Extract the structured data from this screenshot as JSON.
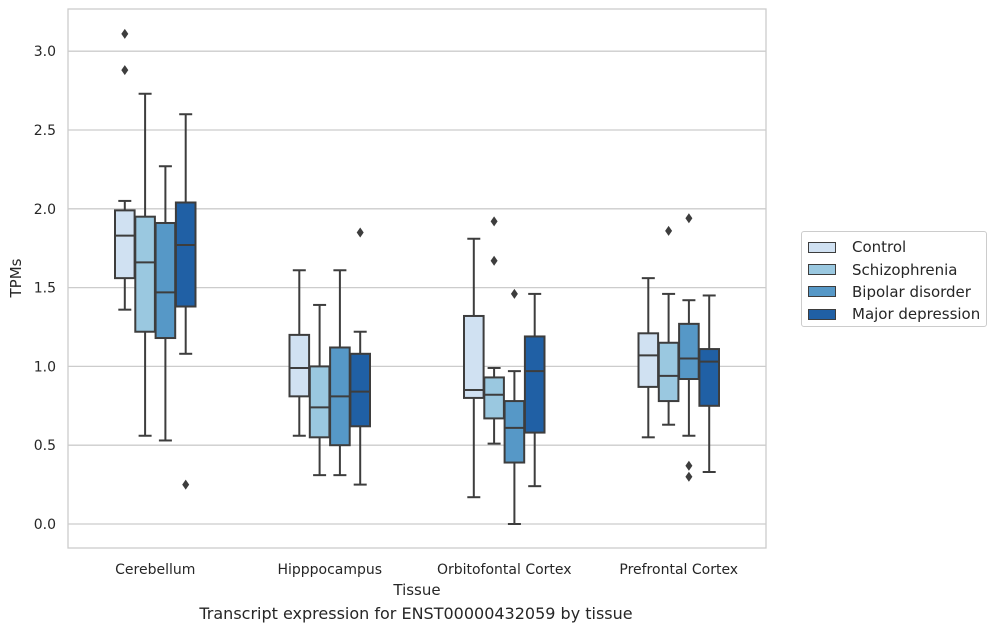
{
  "chart_data": {
    "type": "box",
    "title": "Transcript expression for ENST00000432059 by tissue",
    "xlabel": "Tissue",
    "ylabel": "TPMs",
    "categories": [
      "Cerebellum",
      "Hipppocampus",
      "Orbitofontal Cortex",
      "Prefrontal Cortex"
    ],
    "yticks": [
      "0.0",
      "0.5",
      "1.0",
      "1.5",
      "2.0",
      "2.5",
      "3.0"
    ],
    "ylim": [
      -0.15,
      3.27
    ],
    "grid": "horizontal",
    "legend_position": "right",
    "series": [
      {
        "name": "Control",
        "color": "#d0e1f2",
        "boxes": [
          {
            "whislo": 1.36,
            "q1": 1.56,
            "med": 1.83,
            "q3": 1.99,
            "whishi": 2.05,
            "fliers": [
              3.11,
              2.88
            ]
          },
          {
            "whislo": 0.56,
            "q1": 0.81,
            "med": 0.99,
            "q3": 1.2,
            "whishi": 1.61,
            "fliers": []
          },
          {
            "whislo": 0.17,
            "q1": 0.8,
            "med": 0.85,
            "q3": 1.32,
            "whishi": 1.81,
            "fliers": []
          },
          {
            "whislo": 0.55,
            "q1": 0.87,
            "med": 1.07,
            "q3": 1.21,
            "whishi": 1.56,
            "fliers": []
          }
        ]
      },
      {
        "name": "Schizophrenia",
        "color": "#9ac8e0",
        "boxes": [
          {
            "whislo": 0.56,
            "q1": 1.22,
            "med": 1.66,
            "q3": 1.95,
            "whishi": 2.73,
            "fliers": []
          },
          {
            "whislo": 0.31,
            "q1": 0.55,
            "med": 0.74,
            "q3": 1.0,
            "whishi": 1.39,
            "fliers": []
          },
          {
            "whislo": 0.51,
            "q1": 0.67,
            "med": 0.82,
            "q3": 0.93,
            "whishi": 0.99,
            "fliers": [
              1.92,
              1.67
            ]
          },
          {
            "whislo": 0.63,
            "q1": 0.78,
            "med": 0.94,
            "q3": 1.15,
            "whishi": 1.46,
            "fliers": [
              1.86
            ]
          }
        ]
      },
      {
        "name": "Bipolar disorder",
        "color": "#5698c7",
        "boxes": [
          {
            "whislo": 0.53,
            "q1": 1.18,
            "med": 1.47,
            "q3": 1.91,
            "whishi": 2.27,
            "fliers": []
          },
          {
            "whislo": 0.31,
            "q1": 0.5,
            "med": 0.81,
            "q3": 1.12,
            "whishi": 1.61,
            "fliers": []
          },
          {
            "whislo": 0.0,
            "q1": 0.39,
            "med": 0.61,
            "q3": 0.78,
            "whishi": 0.97,
            "fliers": [
              1.46
            ]
          },
          {
            "whislo": 0.56,
            "q1": 0.92,
            "med": 1.05,
            "q3": 1.27,
            "whishi": 1.42,
            "fliers": [
              1.94,
              0.37,
              0.3
            ]
          }
        ]
      },
      {
        "name": "Major depression",
        "color": "#2060a5",
        "boxes": [
          {
            "whislo": 1.08,
            "q1": 1.38,
            "med": 1.77,
            "q3": 2.04,
            "whishi": 2.6,
            "fliers": [
              0.25
            ]
          },
          {
            "whislo": 0.25,
            "q1": 0.62,
            "med": 0.84,
            "q3": 1.08,
            "whishi": 1.22,
            "fliers": [
              1.85
            ]
          },
          {
            "whislo": 0.24,
            "q1": 0.58,
            "med": 0.97,
            "q3": 1.19,
            "whishi": 1.46,
            "fliers": []
          },
          {
            "whislo": 0.33,
            "q1": 0.75,
            "med": 1.03,
            "q3": 1.11,
            "whishi": 1.45,
            "fliers": []
          }
        ]
      }
    ]
  }
}
